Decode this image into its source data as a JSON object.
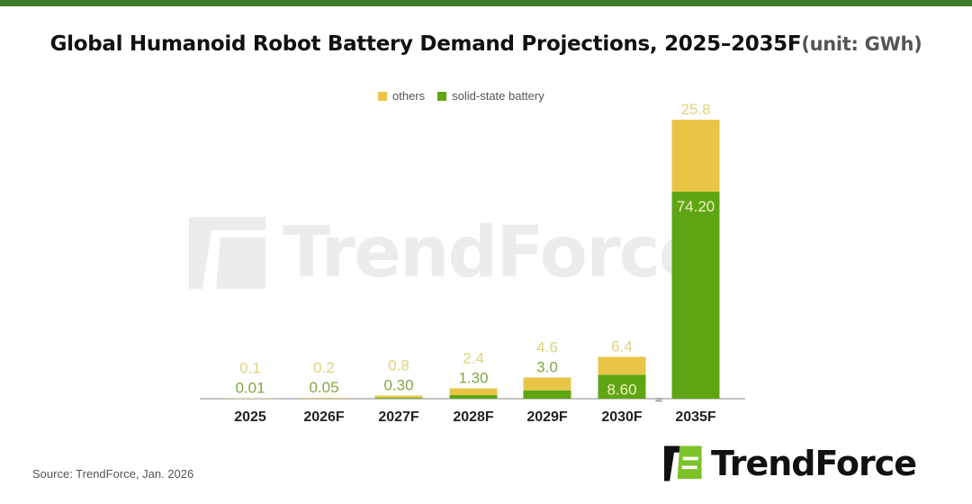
{
  "title": "Global Humanoid Robot Battery Demand Projections, 2025–2035F",
  "unit": "(unit: GWh)",
  "source": "Source: TrendForce, Jan. 2026",
  "logo_text": "TrendForce",
  "colors": {
    "others": "#e8c547",
    "solid_state": "#5ea514",
    "others_label": "#e2d27c",
    "solid_label": "#7fa843",
    "topbar": "#3d7a2a"
  },
  "chart_data": {
    "type": "bar",
    "stacked": true,
    "legend_position": "top",
    "axis_break_before": "2035F",
    "categories": [
      "2025",
      "2026F",
      "2027F",
      "2028F",
      "2029F",
      "2030F",
      "2035F"
    ],
    "series": [
      {
        "name": "solid-state battery",
        "values": [
          0.01,
          0.05,
          0.3,
          1.3,
          3.0,
          8.6,
          74.2
        ],
        "labels": [
          "0.01",
          "0.05",
          "0.30",
          "1.30",
          "3.0",
          "8.60",
          "74.20"
        ]
      },
      {
        "name": "others",
        "values": [
          0.1,
          0.2,
          0.8,
          2.4,
          4.6,
          6.4,
          25.8
        ],
        "labels": [
          "0.1",
          "0.2",
          "0.8",
          "2.4",
          "4.6",
          "6.4",
          "25.8"
        ]
      }
    ]
  }
}
